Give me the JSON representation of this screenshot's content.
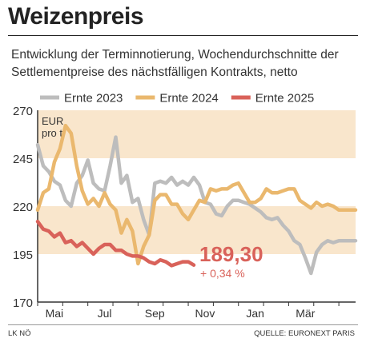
{
  "title": "Weizenpreis",
  "subtitle": "Entwicklung der Terminnotierung, Wochendurchschnitte der Settlementpreise des nächstfälligen Kontrakts, netto",
  "footer": {
    "left": "LK NÖ",
    "right": "QUELLE: EURONEXT PARIS"
  },
  "colors": {
    "ernte2023": "#bdbdbd",
    "ernte2024": "#eab86e",
    "ernte2025": "#d9625a",
    "band": "#f9e6cc",
    "axis": "#333333",
    "value": "#d9625a"
  },
  "chart_data": {
    "type": "line",
    "unit_label": [
      "EUR",
      "pro t"
    ],
    "ylim": [
      170,
      270
    ],
    "yticks": [
      170,
      195,
      220,
      245,
      270
    ],
    "x_ticks": [
      "Mai",
      "Jul",
      "Sep",
      "Nov",
      "Jan",
      "Mär"
    ],
    "x_tick_weeks": [
      3,
      12,
      21,
      30,
      39,
      48
    ],
    "x_range": [
      0,
      57
    ],
    "grid": "shaded bands",
    "legend": "top",
    "series": [
      {
        "name": "Ernte 2023",
        "color": "#bdbdbd",
        "x": [
          0,
          1,
          2,
          3,
          4,
          5,
          6,
          7,
          8,
          9,
          10,
          11,
          12,
          13,
          14,
          15,
          16,
          17,
          18,
          19,
          20,
          21,
          22,
          23,
          24,
          25,
          26,
          27,
          28,
          29,
          30,
          31,
          32,
          33,
          34,
          35,
          36,
          37,
          38,
          39,
          40,
          41,
          42,
          43,
          44,
          45,
          46,
          47,
          48,
          49,
          50,
          51,
          52,
          53,
          54,
          55,
          56,
          57
        ],
        "values": [
          252,
          241,
          238,
          233,
          231,
          223,
          220,
          232,
          236,
          244,
          232,
          229,
          228,
          241,
          256,
          232,
          236,
          222,
          224,
          213,
          205,
          232,
          233,
          232,
          235,
          231,
          233,
          231,
          235,
          231,
          222,
          221,
          216,
          215,
          220,
          223,
          223,
          222,
          221,
          219,
          217,
          214,
          213,
          214,
          210,
          207,
          202,
          200,
          193,
          185,
          196,
          200,
          202,
          201,
          202,
          202,
          202,
          202
        ]
      },
      {
        "name": "Ernte 2024",
        "color": "#eab86e",
        "x": [
          0,
          1,
          2,
          3,
          4,
          5,
          6,
          7,
          8,
          9,
          10,
          11,
          12,
          13,
          14,
          15,
          16,
          17,
          18,
          19,
          20,
          21,
          22,
          23,
          24,
          25,
          26,
          27,
          28,
          29,
          30,
          31,
          32,
          33,
          34,
          35,
          36,
          37,
          38,
          39,
          40,
          41,
          42,
          43,
          44,
          45,
          46,
          47,
          48,
          49,
          50,
          51,
          52,
          53,
          54,
          55,
          56,
          57
        ],
        "values": [
          218,
          227,
          229,
          243,
          250,
          262,
          258,
          241,
          228,
          221,
          224,
          220,
          227,
          221,
          218,
          206,
          213,
          207,
          190,
          199,
          205,
          223,
          226,
          226,
          221,
          221,
          216,
          213,
          218,
          223,
          222,
          229,
          228,
          229,
          229,
          231,
          232,
          227,
          222,
          222,
          224,
          229,
          227,
          227,
          228,
          229,
          229,
          223,
          221,
          219,
          222,
          220,
          221,
          220,
          218,
          218,
          218,
          218
        ]
      },
      {
        "name": "Ernte 2025",
        "color": "#d9625a",
        "x": [
          0,
          1,
          2,
          3,
          4,
          5,
          6,
          7,
          8,
          9,
          10,
          11,
          12,
          13,
          14,
          15,
          16,
          17,
          18,
          19,
          20,
          21,
          22,
          23,
          24,
          25,
          26,
          27,
          28
        ],
        "values": [
          212,
          208,
          207,
          204,
          206,
          201,
          202,
          199,
          201,
          198,
          195,
          198,
          200,
          200,
          197,
          197,
          195,
          194,
          194,
          193,
          191,
          190,
          192,
          191,
          189,
          190,
          191,
          191,
          189.3
        ]
      }
    ],
    "annotations": {
      "last_value": "189,30",
      "change": "+ 0,34 %"
    }
  }
}
